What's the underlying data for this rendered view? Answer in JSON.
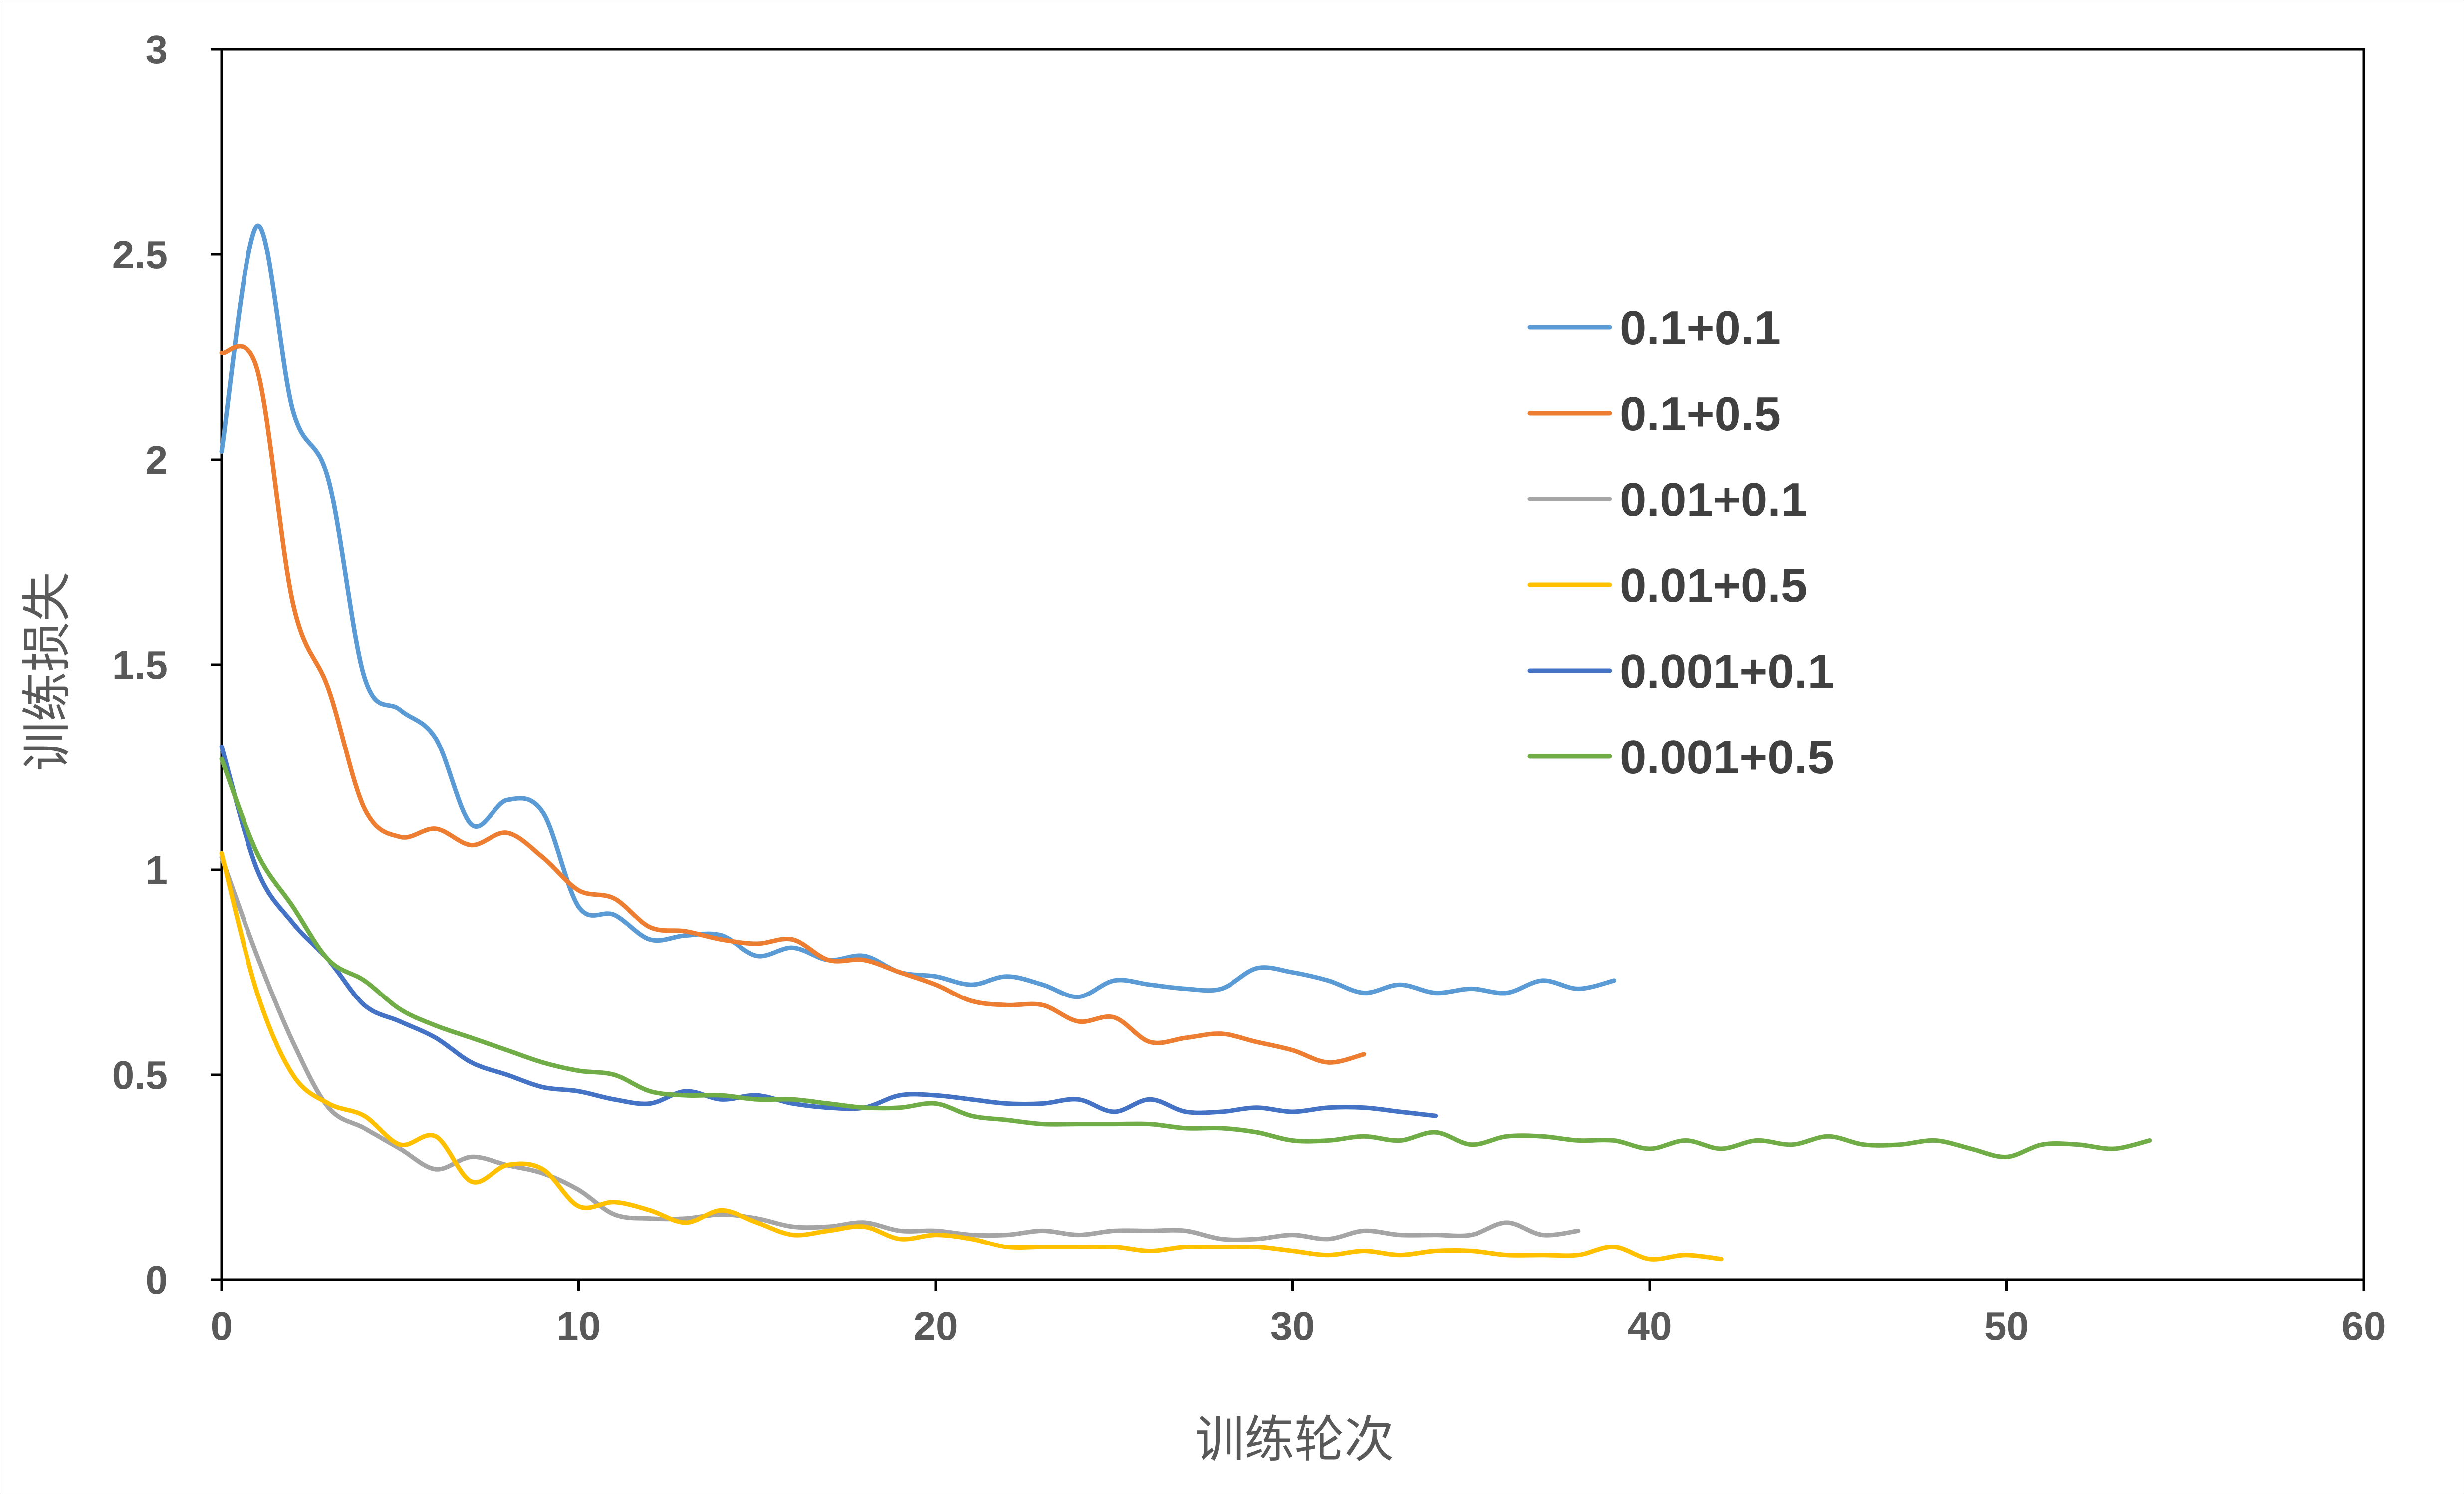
{
  "chart_data": {
    "type": "line",
    "title": "",
    "xlabel": "训练轮次",
    "ylabel": "训练损失",
    "xlim": [
      0,
      60
    ],
    "ylim": [
      0,
      3
    ],
    "x_ticks": [
      "0",
      "10",
      "20",
      "30",
      "40",
      "50",
      "60"
    ],
    "y_ticks": [
      "0",
      "0.5",
      "1",
      "1.5",
      "2",
      "2.5",
      "3"
    ],
    "grid": false,
    "legend_position": "right",
    "series": [
      {
        "name": "0.1+0.1",
        "color": "#5B9BD5",
        "x": [
          0,
          1,
          2,
          3,
          4,
          5,
          6,
          7,
          8,
          9,
          10,
          11,
          12,
          13,
          14,
          15,
          16,
          17,
          18,
          19,
          20,
          21,
          22,
          23,
          24,
          25,
          26,
          27,
          28,
          29,
          30,
          31,
          32,
          33,
          34,
          35,
          36,
          37,
          38,
          39
        ],
        "y": [
          2.02,
          2.57,
          2.12,
          1.95,
          1.47,
          1.39,
          1.32,
          1.11,
          1.17,
          1.14,
          0.91,
          0.89,
          0.83,
          0.84,
          0.84,
          0.79,
          0.81,
          0.78,
          0.79,
          0.75,
          0.74,
          0.72,
          0.74,
          0.72,
          0.69,
          0.73,
          0.72,
          0.71,
          0.71,
          0.76,
          0.75,
          0.73,
          0.7,
          0.72,
          0.7,
          0.71,
          0.7,
          0.73,
          0.71,
          0.73
        ]
      },
      {
        "name": "0.1+0.5",
        "color": "#ED7D31",
        "x": [
          0,
          1,
          2,
          3,
          4,
          5,
          6,
          7,
          8,
          9,
          10,
          11,
          12,
          13,
          14,
          15,
          16,
          17,
          18,
          19,
          20,
          21,
          22,
          23,
          24,
          25,
          26,
          27,
          28,
          29,
          30,
          31,
          32
        ],
        "y": [
          2.26,
          2.22,
          1.65,
          1.44,
          1.15,
          1.08,
          1.1,
          1.06,
          1.09,
          1.03,
          0.95,
          0.93,
          0.86,
          0.85,
          0.83,
          0.82,
          0.83,
          0.78,
          0.78,
          0.75,
          0.72,
          0.68,
          0.67,
          0.67,
          0.63,
          0.64,
          0.58,
          0.59,
          0.6,
          0.58,
          0.56,
          0.53,
          0.55
        ]
      },
      {
        "name": "0.01+0.1",
        "color": "#A5A5A5",
        "x": [
          0,
          1,
          2,
          3,
          4,
          5,
          6,
          7,
          8,
          9,
          10,
          11,
          12,
          13,
          14,
          15,
          16,
          17,
          18,
          19,
          20,
          21,
          22,
          23,
          24,
          25,
          26,
          27,
          28,
          29,
          30,
          31,
          32,
          33,
          34,
          35,
          36,
          37,
          38
        ],
        "y": [
          1.03,
          0.79,
          0.58,
          0.42,
          0.37,
          0.32,
          0.27,
          0.3,
          0.28,
          0.26,
          0.22,
          0.16,
          0.15,
          0.15,
          0.16,
          0.15,
          0.13,
          0.13,
          0.14,
          0.12,
          0.12,
          0.11,
          0.11,
          0.12,
          0.11,
          0.12,
          0.12,
          0.12,
          0.1,
          0.1,
          0.11,
          0.1,
          0.12,
          0.11,
          0.11,
          0.11,
          0.14,
          0.11,
          0.12
        ]
      },
      {
        "name": "0.01+0.5",
        "color": "#FFC000",
        "x": [
          0,
          1,
          2,
          3,
          4,
          5,
          6,
          7,
          8,
          9,
          10,
          11,
          12,
          13,
          14,
          15,
          16,
          17,
          18,
          19,
          20,
          21,
          22,
          23,
          24,
          25,
          26,
          27,
          28,
          29,
          30,
          31,
          32,
          33,
          34,
          35,
          36,
          37,
          38,
          39,
          40,
          41,
          42
        ],
        "y": [
          1.04,
          0.7,
          0.5,
          0.43,
          0.4,
          0.33,
          0.35,
          0.24,
          0.28,
          0.27,
          0.18,
          0.19,
          0.17,
          0.14,
          0.17,
          0.14,
          0.11,
          0.12,
          0.13,
          0.1,
          0.11,
          0.1,
          0.08,
          0.08,
          0.08,
          0.08,
          0.07,
          0.08,
          0.08,
          0.08,
          0.07,
          0.06,
          0.07,
          0.06,
          0.07,
          0.07,
          0.06,
          0.06,
          0.06,
          0.08,
          0.05,
          0.06,
          0.05
        ]
      },
      {
        "name": "0.001+0.1",
        "color": "#4472C4",
        "x": [
          0,
          1,
          2,
          3,
          4,
          5,
          6,
          7,
          8,
          9,
          10,
          11,
          12,
          13,
          14,
          15,
          16,
          17,
          18,
          19,
          20,
          21,
          22,
          23,
          24,
          25,
          26,
          27,
          28,
          29,
          30,
          31,
          32,
          33,
          34
        ],
        "y": [
          1.3,
          1.0,
          0.87,
          0.78,
          0.67,
          0.63,
          0.59,
          0.53,
          0.5,
          0.47,
          0.46,
          0.44,
          0.43,
          0.46,
          0.44,
          0.45,
          0.43,
          0.42,
          0.42,
          0.45,
          0.45,
          0.44,
          0.43,
          0.43,
          0.44,
          0.41,
          0.44,
          0.41,
          0.41,
          0.42,
          0.41,
          0.42,
          0.42,
          0.41,
          0.4
        ]
      },
      {
        "name": "0.001+0.5",
        "color": "#70AD47",
        "x": [
          0,
          1,
          2,
          3,
          4,
          5,
          6,
          7,
          8,
          9,
          10,
          11,
          12,
          13,
          14,
          15,
          16,
          17,
          18,
          19,
          20,
          21,
          22,
          23,
          24,
          25,
          26,
          27,
          28,
          29,
          30,
          31,
          32,
          33,
          34,
          35,
          36,
          37,
          38,
          39,
          40,
          41,
          42,
          43,
          44,
          45,
          46,
          47,
          48,
          49,
          50,
          51,
          52,
          53,
          54
        ],
        "y": [
          1.27,
          1.04,
          0.91,
          0.78,
          0.73,
          0.66,
          0.62,
          0.59,
          0.56,
          0.53,
          0.51,
          0.5,
          0.46,
          0.45,
          0.45,
          0.44,
          0.44,
          0.43,
          0.42,
          0.42,
          0.43,
          0.4,
          0.39,
          0.38,
          0.38,
          0.38,
          0.38,
          0.37,
          0.37,
          0.36,
          0.34,
          0.34,
          0.35,
          0.34,
          0.36,
          0.33,
          0.35,
          0.35,
          0.34,
          0.34,
          0.32,
          0.34,
          0.32,
          0.34,
          0.33,
          0.35,
          0.33,
          0.33,
          0.34,
          0.32,
          0.3,
          0.33,
          0.33,
          0.32,
          0.34
        ]
      }
    ]
  }
}
